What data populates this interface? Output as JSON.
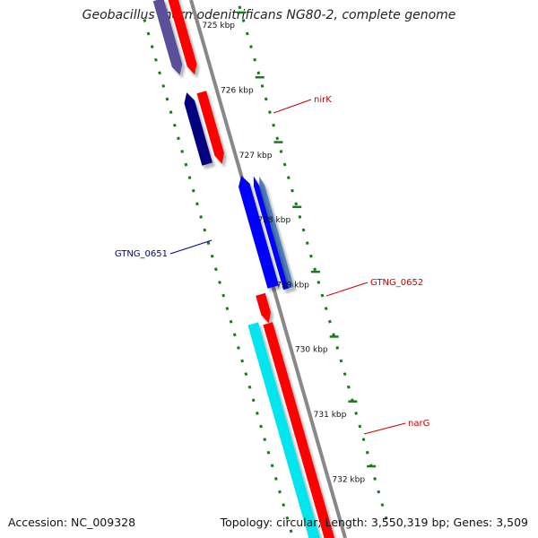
{
  "title": "Geobacillus thermodenitrificans NG80-2, complete genome",
  "accession": "Accession: NC_009328",
  "topology": "Topology: circular; Length: 3,550,319 bp; Genes: 3,509",
  "colors": {
    "backbone": "#888888",
    "tick": "#1a7a1a",
    "red": "#ff0000",
    "blue": "#0000ff",
    "steelblue": "#4f7fb8",
    "navy": "#000080",
    "slate": "#5a4f9a",
    "cyan": "#00e5ee",
    "label_red": "#cc0000",
    "label_blue": "#00008b"
  },
  "scale_labels": [
    {
      "text": "725 kbp",
      "kbp": 725
    },
    {
      "text": "726 kbp",
      "kbp": 726
    },
    {
      "text": "727 kbp",
      "kbp": 727
    },
    {
      "text": "728 kbp",
      "kbp": 728
    },
    {
      "text": "729 kbp",
      "kbp": 729
    },
    {
      "text": "730 kbp",
      "kbp": 730
    },
    {
      "text": "731 kbp",
      "kbp": 731
    },
    {
      "text": "732 kbp",
      "kbp": 732
    }
  ],
  "gene_labels": [
    {
      "name": "nirK",
      "color": "label_red"
    },
    {
      "name": "GTNG_0651",
      "color": "label_blue"
    },
    {
      "name": "GTNG_0652",
      "color": "label_red"
    },
    {
      "name": "narG",
      "color": "label_red"
    }
  ]
}
